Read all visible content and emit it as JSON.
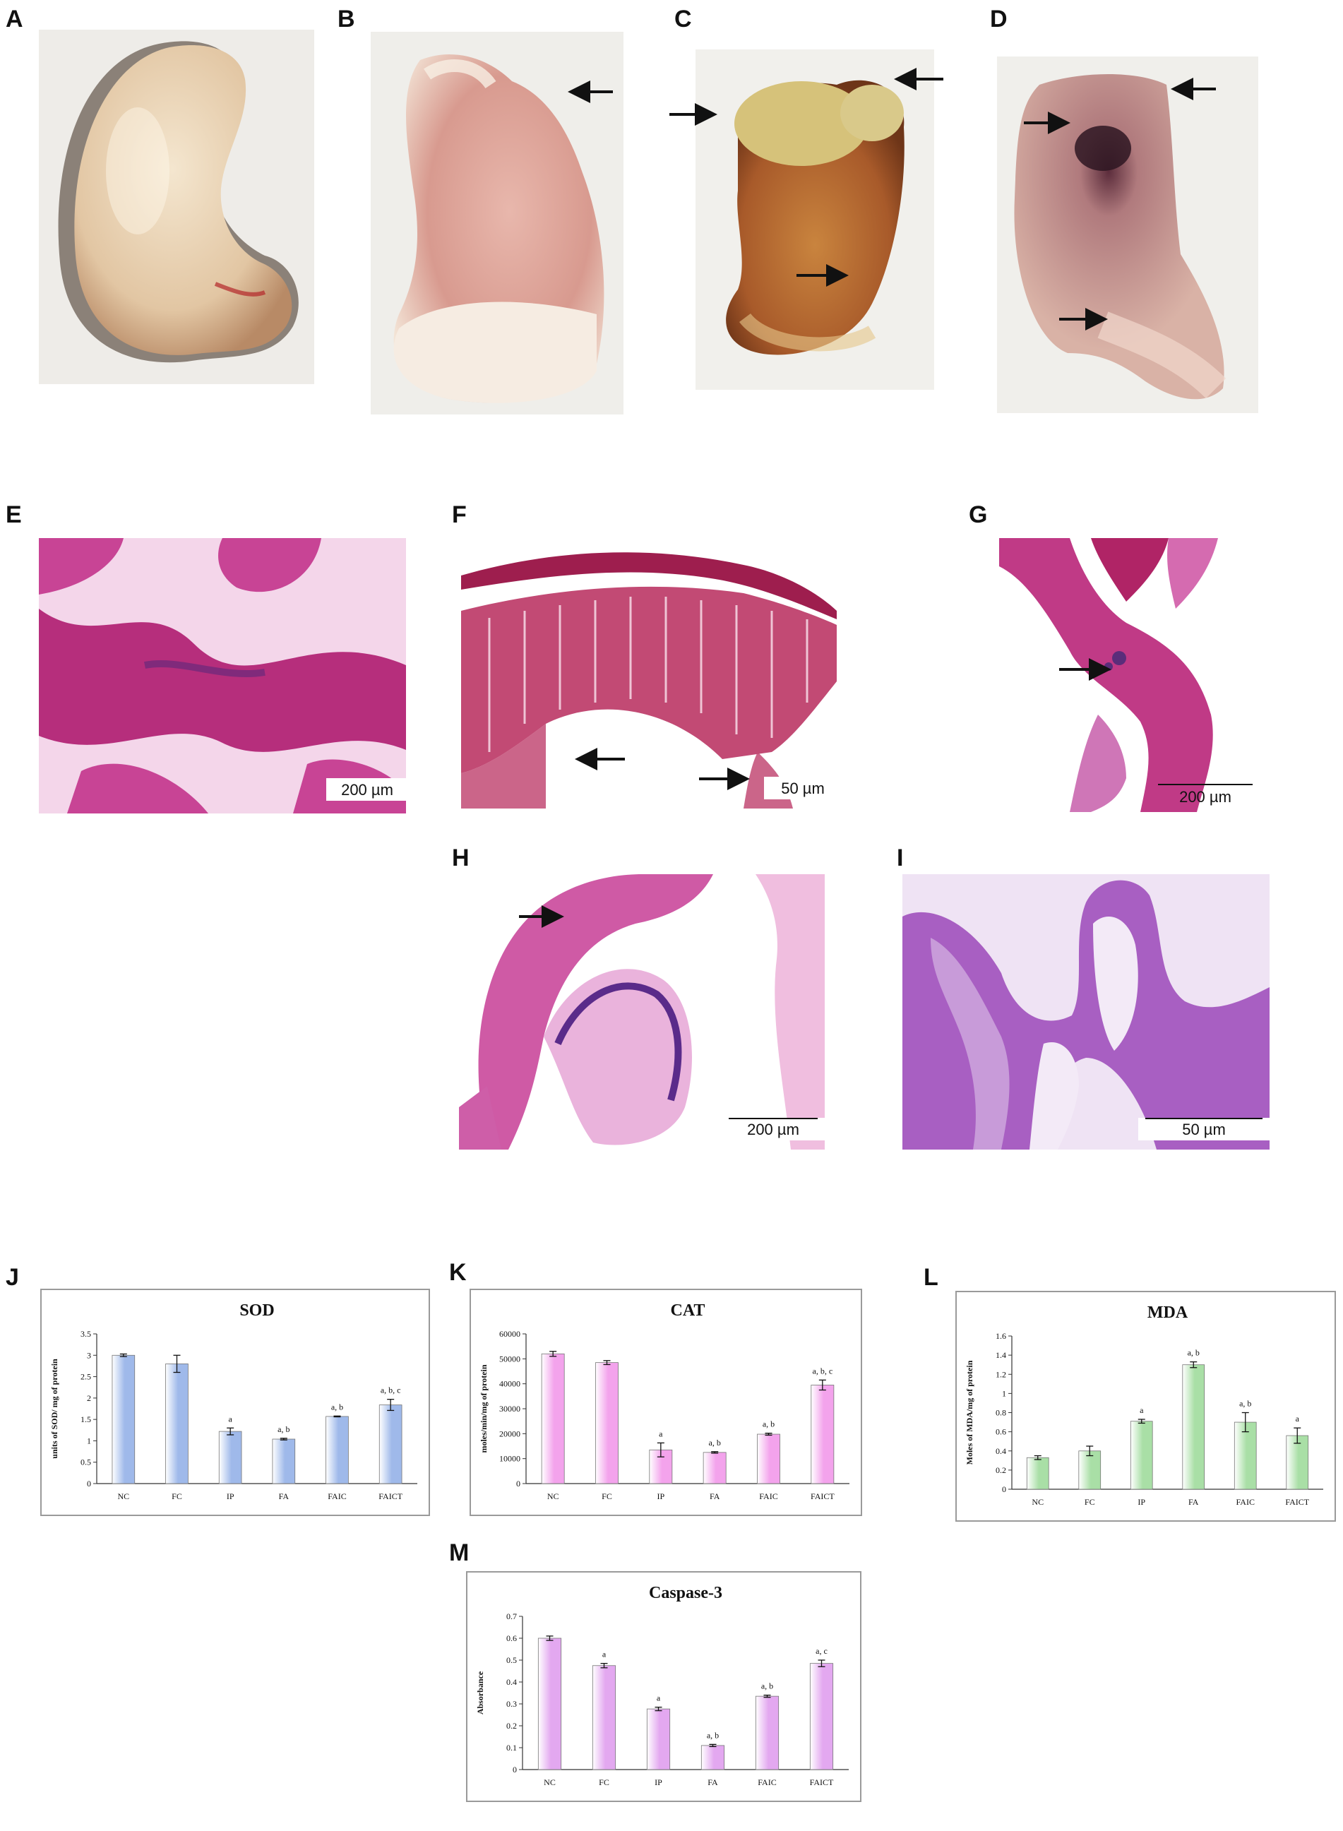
{
  "panel_labels": {
    "A": "A",
    "B": "B",
    "C": "C",
    "D": "D",
    "E": "E",
    "F": "F",
    "G": "G",
    "H": "H",
    "I": "I",
    "J": "J",
    "K": "K",
    "L": "L",
    "M": "M"
  },
  "scale_bars": {
    "E": "200 µm",
    "F": "50 µm",
    "G": "200 µm",
    "H": "200 µm",
    "I": "50 µm"
  },
  "colors": {
    "sod_bar": "#9fb9ea",
    "cat_bar": "#f3a3ec",
    "mda_bar": "#a9dfa6",
    "caspase_bar": "#e3a8f0",
    "he_stain": "#c2378a"
  },
  "chart_data": [
    {
      "id": "J",
      "type": "bar",
      "title": "SOD",
      "ylabel": "units of SOD/ mg of protein",
      "categories": [
        "NC",
        "FC",
        "IP",
        "FA",
        "FAIC",
        "FAICT"
      ],
      "values": [
        3.0,
        2.8,
        1.22,
        1.04,
        1.57,
        1.84
      ],
      "errors": [
        0.03,
        0.2,
        0.08,
        0.02,
        0.01,
        0.13
      ],
      "annotations": [
        "",
        "",
        "a",
        "a, b",
        "a, b",
        "a, b, c"
      ],
      "ylim": [
        0,
        3.5
      ],
      "yticks": [
        "0",
        "0.5",
        "1",
        "1.5",
        "2",
        "2.5",
        "3",
        "3.5"
      ],
      "grid": false
    },
    {
      "id": "K",
      "type": "bar",
      "title": "CAT",
      "ylabel": "moles/min/mg of protein",
      "categories": [
        "NC",
        "FC",
        "IP",
        "FA",
        "FAIC",
        "FAICT"
      ],
      "values": [
        52000,
        48500,
        13500,
        12500,
        19800,
        39500
      ],
      "errors": [
        1000,
        800,
        2800,
        300,
        400,
        2000
      ],
      "annotations": [
        "",
        "",
        "a",
        "a, b",
        "a, b",
        "a, b, c"
      ],
      "ylim": [
        0,
        60000
      ],
      "yticks": [
        "0",
        "10000",
        "20000",
        "30000",
        "40000",
        "50000",
        "60000"
      ],
      "grid": false
    },
    {
      "id": "L",
      "type": "bar",
      "title": "MDA",
      "ylabel": "Moles of MDA/mg of protein",
      "categories": [
        "NC",
        "FC",
        "IP",
        "FA",
        "FAIC",
        "FAICT"
      ],
      "values": [
        0.33,
        0.4,
        0.71,
        1.3,
        0.7,
        0.56
      ],
      "errors": [
        0.02,
        0.05,
        0.02,
        0.03,
        0.1,
        0.08
      ],
      "annotations": [
        "",
        "",
        "a",
        "a, b",
        "a, b",
        "a"
      ],
      "ylim": [
        0,
        1.6
      ],
      "yticks": [
        "0",
        "0.2",
        "0.4",
        "0.6",
        "0.8",
        "1",
        "1.2",
        "1.4",
        "1.6"
      ],
      "grid": false
    },
    {
      "id": "M",
      "type": "bar",
      "title": "Caspase-3",
      "ylabel": "Absorbance",
      "categories": [
        "NC",
        "FC",
        "IP",
        "FA",
        "FAIC",
        "FAICT"
      ],
      "values": [
        0.6,
        0.475,
        0.277,
        0.11,
        0.335,
        0.485
      ],
      "errors": [
        0.01,
        0.01,
        0.008,
        0.005,
        0.005,
        0.015
      ],
      "annotations": [
        "",
        "a",
        "a",
        "a, b",
        "a, b",
        "a, c"
      ],
      "ylim": [
        0,
        0.7
      ],
      "yticks": [
        "0",
        "0.1",
        "0.2",
        "0.3",
        "0.4",
        "0.5",
        "0.6",
        "0.7"
      ],
      "grid": false
    }
  ]
}
